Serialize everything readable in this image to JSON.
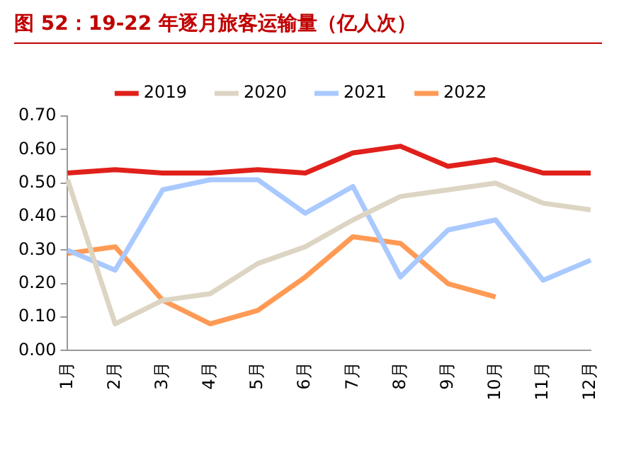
{
  "chart_data": {
    "type": "line",
    "title": "图 52：19-22 年逐月旅客运输量（亿人次）",
    "categories": [
      "1月",
      "2月",
      "3月",
      "4月",
      "5月",
      "6月",
      "7月",
      "8月",
      "9月",
      "10月",
      "11月",
      "12月"
    ],
    "series": [
      {
        "name": "2019",
        "color": "#e0201b",
        "values": [
          0.53,
          0.54,
          0.53,
          0.53,
          0.54,
          0.53,
          0.59,
          0.61,
          0.55,
          0.57,
          0.53,
          0.53
        ]
      },
      {
        "name": "2020",
        "color": "#ddd5c3",
        "values": [
          0.51,
          0.08,
          0.15,
          0.17,
          0.26,
          0.31,
          0.39,
          0.46,
          0.48,
          0.5,
          0.44,
          0.42
        ]
      },
      {
        "name": "2021",
        "color": "#a9c9ff",
        "values": [
          0.3,
          0.24,
          0.48,
          0.51,
          0.51,
          0.41,
          0.49,
          0.22,
          0.36,
          0.39,
          0.21,
          0.27
        ]
      },
      {
        "name": "2022",
        "color": "#ff9a55",
        "values": [
          0.29,
          0.31,
          0.15,
          0.08,
          0.12,
          0.22,
          0.34,
          0.32,
          0.2,
          0.16,
          null,
          null
        ]
      }
    ],
    "ylim": [
      0,
      0.7
    ],
    "yticks": [
      {
        "value": 0,
        "label": "0.00"
      },
      {
        "value": 0.1,
        "label": "0.10"
      },
      {
        "value": 0.2,
        "label": "0.20"
      },
      {
        "value": 0.3,
        "label": "0.30"
      },
      {
        "value": 0.4,
        "label": "0.40"
      },
      {
        "value": 0.5,
        "label": "0.50"
      },
      {
        "value": 0.6,
        "label": "0.60"
      },
      {
        "value": 0.7,
        "label": "0.70"
      }
    ],
    "grid": false,
    "legend": "top",
    "marker": "none",
    "line_style": "solid"
  }
}
